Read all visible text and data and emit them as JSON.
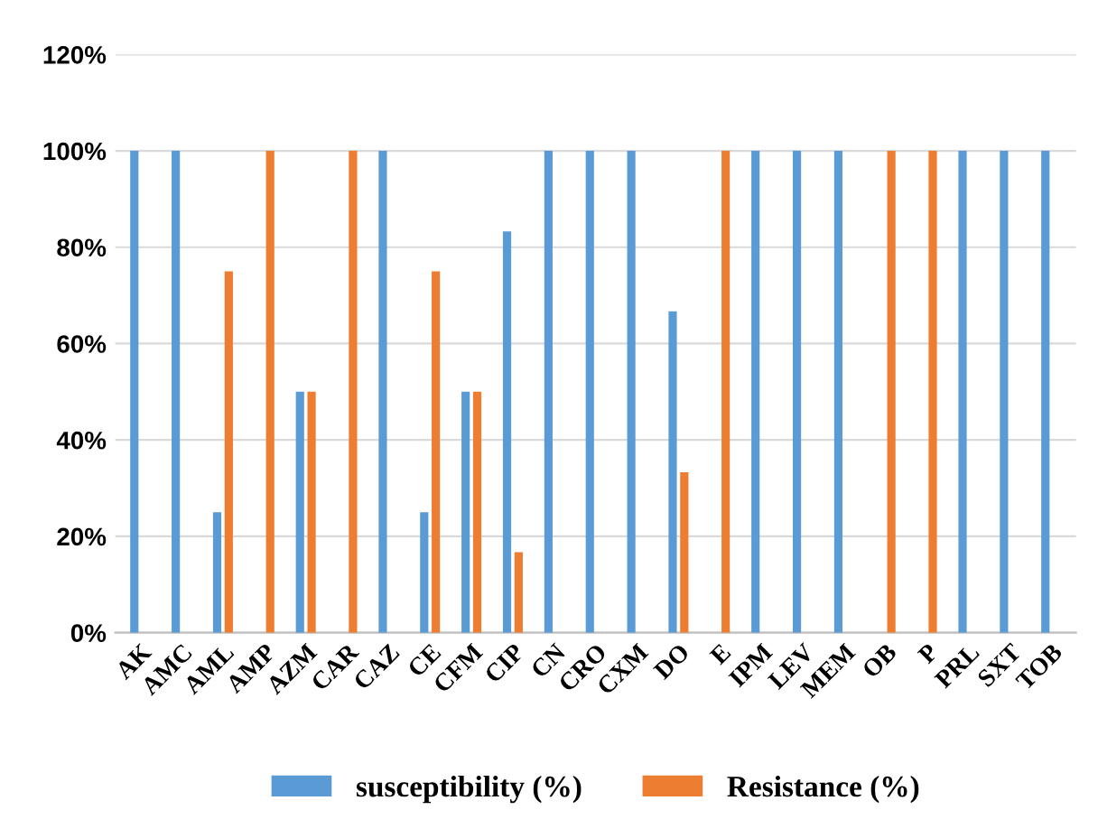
{
  "chart_data": {
    "type": "bar",
    "categories": [
      "AK",
      "AMC",
      "AML",
      "AMP",
      "AZM",
      "CAR",
      "CAZ",
      "CE",
      "CFM",
      "CIP",
      "CN",
      "CRO",
      "CXM",
      "DO",
      "E",
      "IPM",
      "LEV",
      "MEM",
      "OB",
      "P",
      "PRL",
      "SXT",
      "TOB"
    ],
    "series": [
      {
        "name": "susceptibility (%)",
        "color": "#5b9bd5",
        "values": [
          100,
          100,
          25,
          0,
          50,
          0,
          100,
          25,
          50,
          83.3,
          100,
          100,
          100,
          66.7,
          0,
          100,
          100,
          100,
          0,
          0,
          100,
          100,
          100
        ]
      },
      {
        "name": "Resistance (%)",
        "color": "#ed7d31",
        "values": [
          0,
          0,
          75,
          100,
          50,
          100,
          0,
          75,
          50,
          16.7,
          0,
          0,
          0,
          33.3,
          100,
          0,
          0,
          0,
          100,
          100,
          0,
          0,
          0
        ]
      }
    ],
    "ylim": [
      0,
      120
    ],
    "yticks": [
      {
        "value": 0,
        "label": "0%"
      },
      {
        "value": 20,
        "label": "20%"
      },
      {
        "value": 40,
        "label": "40%"
      },
      {
        "value": 60,
        "label": "60%"
      },
      {
        "value": 80,
        "label": "80%"
      },
      {
        "value": 100,
        "label": "100%"
      },
      {
        "value": 120,
        "label": "120%"
      }
    ],
    "grid": "y",
    "legend": "bottom"
  }
}
